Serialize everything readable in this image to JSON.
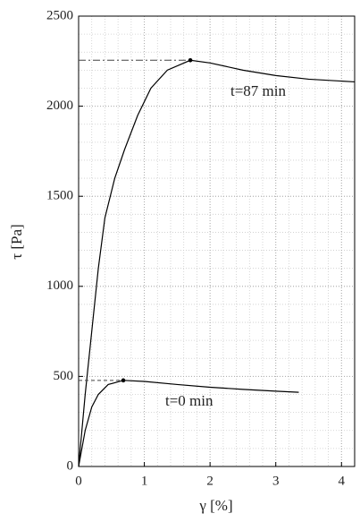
{
  "chart_data": {
    "type": "line",
    "xlabel": "γ [%]",
    "ylabel": "τ [Pa]",
    "xlim": [
      0,
      4.2
    ],
    "xticks": [
      0,
      1,
      2,
      3,
      4
    ],
    "ylim": [
      0,
      2500
    ],
    "yticks": [
      0,
      500,
      1000,
      1500,
      2000,
      2500
    ],
    "grid": true,
    "minor_grid": true,
    "series": [
      {
        "name": "t=87 min",
        "color": "#000000",
        "x": [
          0,
          0.1,
          0.2,
          0.3,
          0.4,
          0.55,
          0.7,
          0.9,
          1.1,
          1.35,
          1.7,
          2.0,
          2.5,
          3.0,
          3.5,
          4.2
        ],
        "values": [
          0,
          400,
          750,
          1100,
          1380,
          1600,
          1760,
          1950,
          2100,
          2200,
          2255,
          2240,
          2200,
          2170,
          2150,
          2135
        ],
        "peak_x": 1.7,
        "peak_y": 2255
      },
      {
        "name": "t=0 min",
        "color": "#000000",
        "x": [
          0,
          0.1,
          0.2,
          0.3,
          0.45,
          0.68,
          1.0,
          1.5,
          2.0,
          2.5,
          3.0,
          3.35
        ],
        "values": [
          0,
          200,
          330,
          400,
          455,
          478,
          472,
          455,
          440,
          428,
          418,
          412
        ],
        "peak_x": 0.68,
        "peak_y": 478
      }
    ]
  }
}
